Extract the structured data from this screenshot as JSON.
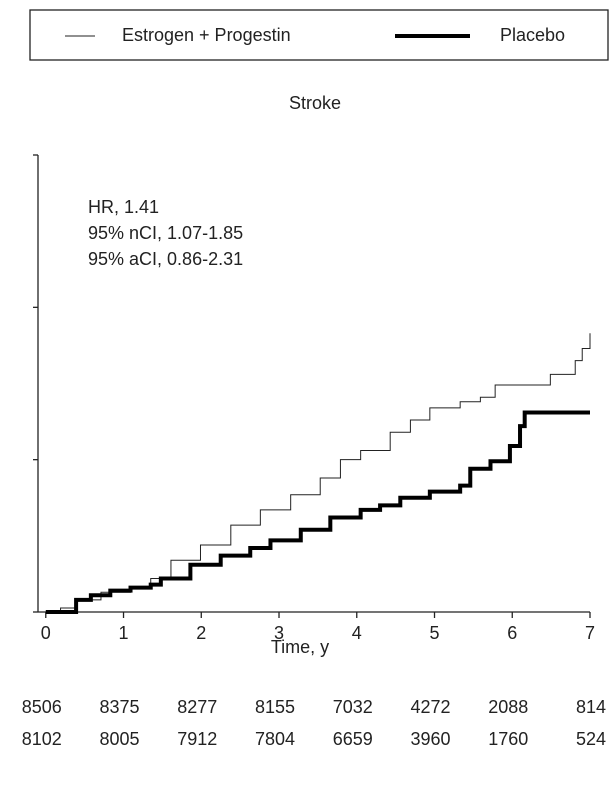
{
  "chart_data": {
    "type": "step",
    "title": "Stroke",
    "x_label": "Time, y",
    "annotations": [
      "HR, 1.41",
      "95% nCI, 1.07-1.85",
      "95% aCI, 0.86-2.31"
    ],
    "xlim": [
      -0.1,
      7
    ],
    "xticks": [
      0,
      1,
      2,
      3,
      4,
      5,
      6,
      7
    ],
    "ylim": [
      0,
      0.03
    ],
    "yticks": [
      0,
      0.01,
      0.02,
      0.03
    ],
    "series": [
      {
        "name": "Estrogen + Progestin",
        "color": "#222222",
        "width": 1,
        "x": [
          0,
          0.19,
          0.39,
          0.71,
          1.09,
          1.35,
          1.61,
          1.99,
          2.38,
          2.76,
          3.15,
          3.53,
          3.79,
          4.05,
          4.43,
          4.69,
          4.94,
          5.33,
          5.59,
          5.78,
          6.42,
          6.49,
          6.68,
          6.81,
          6.9,
          7.0
        ],
        "values": [
          0,
          0.00026,
          0.0008,
          0.0013,
          0.0016,
          0.0022,
          0.0034,
          0.0044,
          0.0057,
          0.0067,
          0.0077,
          0.0088,
          0.01,
          0.0106,
          0.0118,
          0.0126,
          0.0134,
          0.0138,
          0.0141,
          0.0149,
          0.0149,
          0.0156,
          0.0156,
          0.0165,
          0.0173,
          0.0183
        ]
      },
      {
        "name": "Placebo",
        "color": "#000000",
        "width": 4,
        "x": [
          0,
          0.32,
          0.39,
          0.58,
          0.83,
          1.09,
          1.35,
          1.48,
          1.86,
          2.25,
          2.63,
          2.89,
          3.28,
          3.66,
          4.05,
          4.3,
          4.56,
          4.94,
          5.33,
          5.46,
          5.72,
          5.97,
          6.1,
          6.16,
          7.0
        ],
        "values": [
          0,
          0,
          0.0008,
          0.0011,
          0.0014,
          0.0016,
          0.0018,
          0.0022,
          0.0031,
          0.0037,
          0.0042,
          0.0047,
          0.0054,
          0.0062,
          0.0067,
          0.007,
          0.0075,
          0.0079,
          0.0083,
          0.0094,
          0.0099,
          0.0109,
          0.0122,
          0.0131,
          0.0131
        ]
      }
    ],
    "at_risk": [
      [
        8506,
        8375,
        8277,
        8155,
        7032,
        4272,
        2088,
        814
      ],
      [
        8102,
        8005,
        7912,
        7804,
        6659,
        3960,
        1760,
        524
      ]
    ]
  }
}
